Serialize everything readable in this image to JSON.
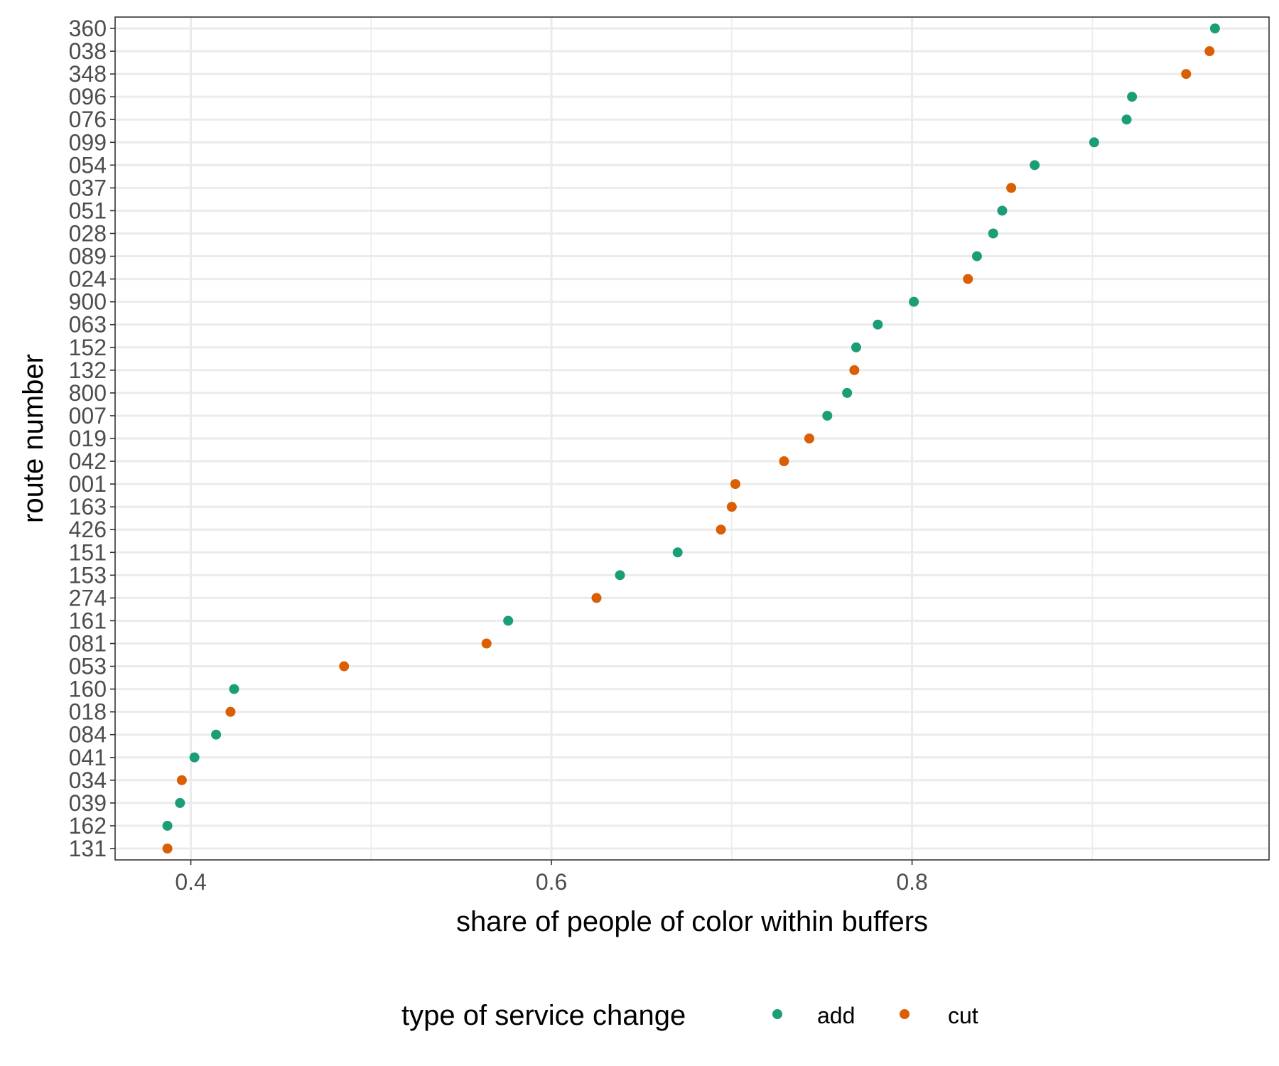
{
  "chart_data": {
    "type": "scatter",
    "xlabel": "share of people of color within buffers",
    "ylabel": "route number",
    "xlim": [
      0.358,
      0.998
    ],
    "x_ticks": [
      "0.4",
      "0.6",
      "0.8"
    ],
    "x_tick_values": [
      0.4,
      0.6,
      0.8
    ],
    "x_minor_grid": [
      0.5,
      0.7,
      0.9
    ],
    "grid": true,
    "legend_position": "bottom",
    "legend": {
      "title": "type of service change",
      "entries": [
        {
          "key": "add",
          "label": "add",
          "color": "#1b9e77"
        },
        {
          "key": "cut",
          "label": "cut",
          "color": "#d95f02"
        }
      ]
    },
    "categories": [
      "131",
      "162",
      "039",
      "034",
      "041",
      "084",
      "018",
      "160",
      "053",
      "081",
      "161",
      "274",
      "153",
      "151",
      "426",
      "163",
      "001",
      "042",
      "019",
      "007",
      "800",
      "132",
      "152",
      "063",
      "900",
      "024",
      "089",
      "028",
      "051",
      "037",
      "054",
      "099",
      "076",
      "096",
      "348",
      "038",
      "360"
    ],
    "points": [
      {
        "route": "360",
        "value": 0.968,
        "type": "add"
      },
      {
        "route": "038",
        "value": 0.965,
        "type": "cut"
      },
      {
        "route": "348",
        "value": 0.952,
        "type": "cut"
      },
      {
        "route": "096",
        "value": 0.922,
        "type": "add"
      },
      {
        "route": "076",
        "value": 0.919,
        "type": "add"
      },
      {
        "route": "099",
        "value": 0.901,
        "type": "add"
      },
      {
        "route": "054",
        "value": 0.868,
        "type": "add"
      },
      {
        "route": "037",
        "value": 0.855,
        "type": "cut"
      },
      {
        "route": "051",
        "value": 0.85,
        "type": "add"
      },
      {
        "route": "028",
        "value": 0.845,
        "type": "add"
      },
      {
        "route": "089",
        "value": 0.836,
        "type": "add"
      },
      {
        "route": "024",
        "value": 0.831,
        "type": "cut"
      },
      {
        "route": "900",
        "value": 0.801,
        "type": "add"
      },
      {
        "route": "063",
        "value": 0.781,
        "type": "add"
      },
      {
        "route": "152",
        "value": 0.769,
        "type": "add"
      },
      {
        "route": "132",
        "value": 0.768,
        "type": "cut"
      },
      {
        "route": "800",
        "value": 0.764,
        "type": "add"
      },
      {
        "route": "007",
        "value": 0.753,
        "type": "add"
      },
      {
        "route": "019",
        "value": 0.743,
        "type": "cut"
      },
      {
        "route": "042",
        "value": 0.729,
        "type": "cut"
      },
      {
        "route": "001",
        "value": 0.702,
        "type": "cut"
      },
      {
        "route": "163",
        "value": 0.7,
        "type": "cut"
      },
      {
        "route": "426",
        "value": 0.694,
        "type": "cut"
      },
      {
        "route": "151",
        "value": 0.67,
        "type": "add"
      },
      {
        "route": "153",
        "value": 0.638,
        "type": "add"
      },
      {
        "route": "274",
        "value": 0.625,
        "type": "cut"
      },
      {
        "route": "161",
        "value": 0.576,
        "type": "add"
      },
      {
        "route": "081",
        "value": 0.564,
        "type": "cut"
      },
      {
        "route": "053",
        "value": 0.485,
        "type": "cut"
      },
      {
        "route": "160",
        "value": 0.424,
        "type": "add"
      },
      {
        "route": "018",
        "value": 0.422,
        "type": "cut"
      },
      {
        "route": "084",
        "value": 0.414,
        "type": "add"
      },
      {
        "route": "041",
        "value": 0.402,
        "type": "add"
      },
      {
        "route": "034",
        "value": 0.395,
        "type": "cut"
      },
      {
        "route": "039",
        "value": 0.394,
        "type": "add"
      },
      {
        "route": "162",
        "value": 0.387,
        "type": "add"
      },
      {
        "route": "131",
        "value": 0.387,
        "type": "cut"
      }
    ]
  }
}
